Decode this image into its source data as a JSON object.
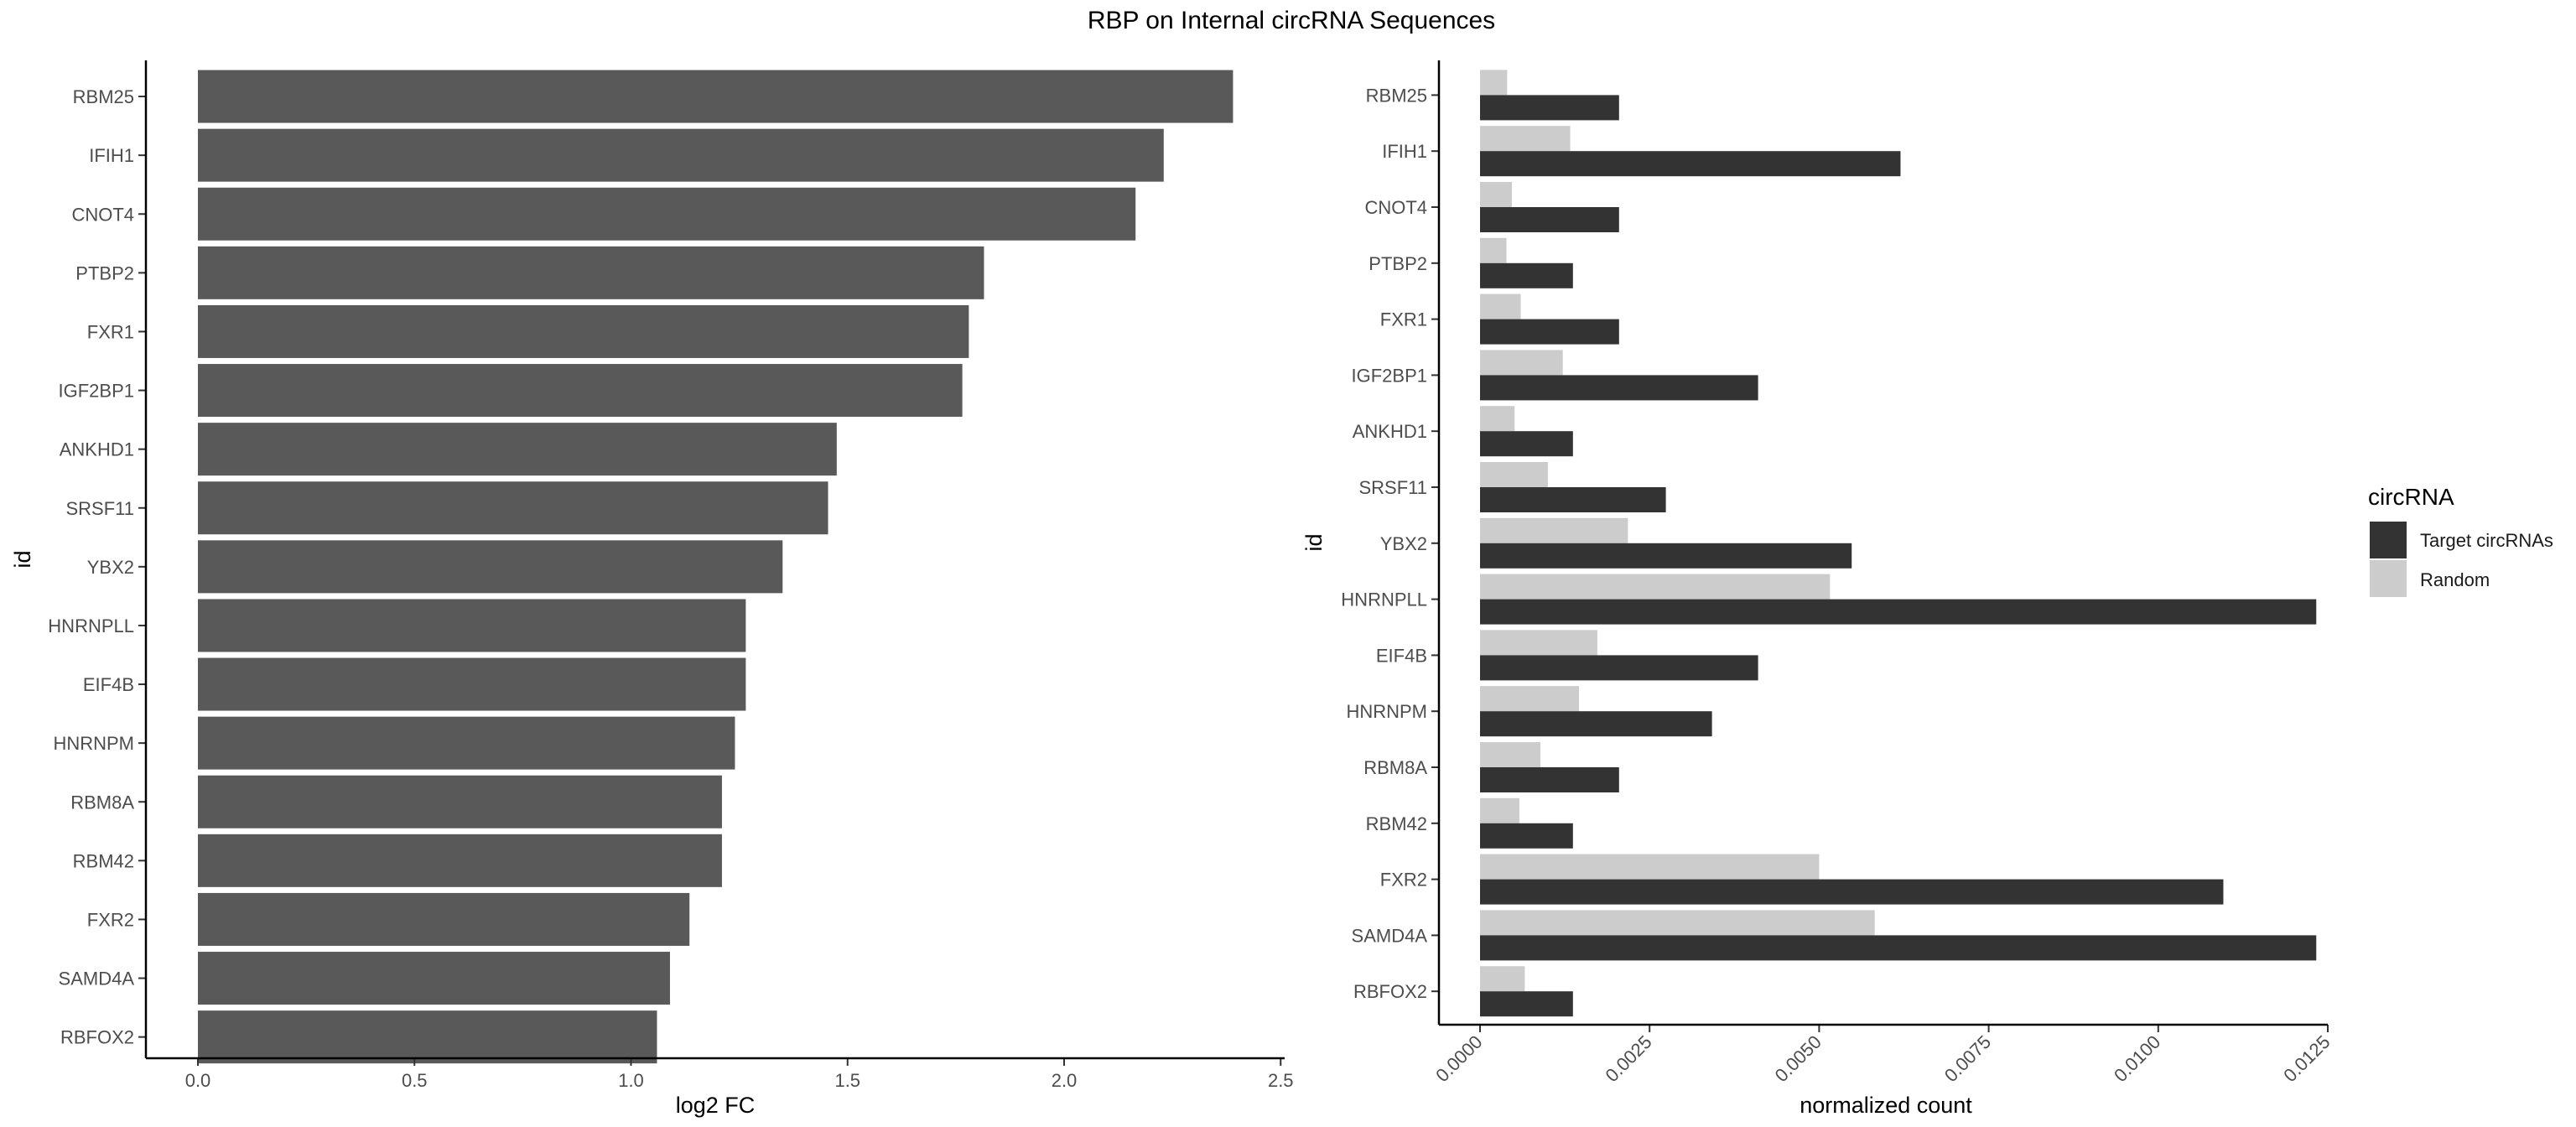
{
  "title": "RBP on Internal circRNA Sequences",
  "chart_data": [
    {
      "type": "bar",
      "orientation": "horizontal",
      "categories": [
        "RBM25",
        "IFIH1",
        "CNOT4",
        "PTBP2",
        "FXR1",
        "IGF2BP1",
        "ANKHD1",
        "SRSF11",
        "YBX2",
        "HNRNPLL",
        "EIF4B",
        "HNRNPM",
        "RBM8A",
        "RBM42",
        "FXR2",
        "SAMD4A",
        "RBFOX2"
      ],
      "values": [
        2.39,
        2.23,
        2.165,
        1.815,
        1.78,
        1.765,
        1.475,
        1.455,
        1.35,
        1.265,
        1.265,
        1.24,
        1.21,
        1.21,
        1.135,
        1.09,
        1.06
      ],
      "xlabel": "log2 FC",
      "ylabel": "id",
      "xlim": [
        -0.12,
        2.5
      ],
      "xticks": [
        "0.0",
        "0.5",
        "1.0",
        "1.5",
        "2.0",
        "2.5"
      ],
      "bar_color": "#595959",
      "grid": false
    },
    {
      "type": "bar",
      "orientation": "horizontal",
      "grouped": true,
      "categories": [
        "RBM25",
        "IFIH1",
        "CNOT4",
        "PTBP2",
        "FXR1",
        "IGF2BP1",
        "ANKHD1",
        "SRSF11",
        "YBX2",
        "HNRNPLL",
        "EIF4B",
        "HNRNPM",
        "RBM8A",
        "RBM42",
        "FXR2",
        "SAMD4A",
        "RBFOX2"
      ],
      "series": [
        {
          "name": "Target circRNAs",
          "color": "#333333",
          "values": [
            0.00205,
            0.0062,
            0.00205,
            0.00137,
            0.00205,
            0.0041,
            0.00137,
            0.00274,
            0.00548,
            0.01233,
            0.0041,
            0.00342,
            0.00205,
            0.00137,
            0.01096,
            0.01233,
            0.00137
          ]
        },
        {
          "name": "Random",
          "color": "#cccccc",
          "values": [
            0.0004,
            0.00133,
            0.00047,
            0.00039,
            0.0006,
            0.00122,
            0.00051,
            0.001,
            0.00218,
            0.00516,
            0.00173,
            0.00146,
            0.00089,
            0.00058,
            0.005,
            0.00582,
            0.00066
          ]
        }
      ],
      "xlabel": "normalized count",
      "ylabel": "id",
      "xlim": [
        -0.0006,
        0.0129
      ],
      "xticks": [
        "0.0000",
        "0.0025",
        "0.0050",
        "0.0075",
        "0.0100",
        "0.0125"
      ],
      "legend": {
        "title": "circRNA",
        "placement": "right"
      },
      "grid": false
    }
  ]
}
